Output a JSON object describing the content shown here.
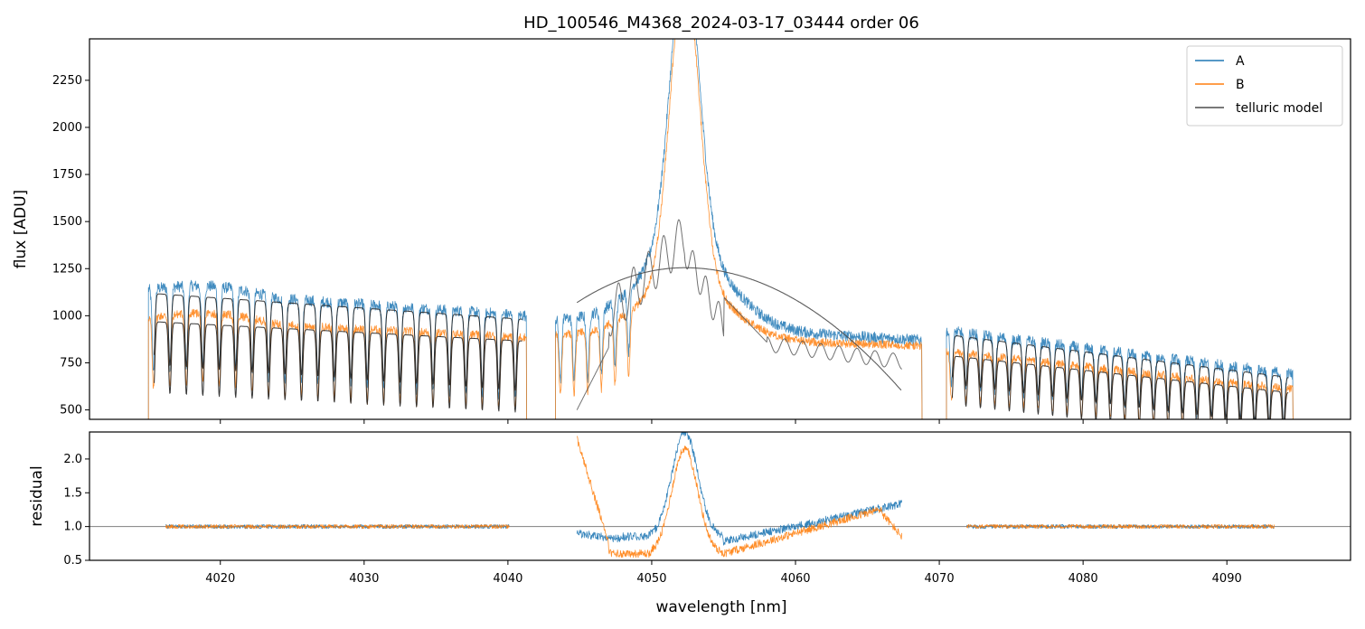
{
  "title": "HD_100546_M4368_2024-03-17_03444  order 06",
  "xlabel": "wavelength [nm]",
  "colors": {
    "A": "#1f77b4",
    "B": "#ff7f0e",
    "telluric": "#4d4d4d",
    "residual_ref": "#7f7f7f"
  },
  "legend": {
    "placement": "top-right",
    "entries": [
      "A",
      "B",
      "telluric model"
    ]
  },
  "chart_data": [
    {
      "name": "flux",
      "type": "line",
      "ylabel": "flux [ADU]",
      "xlim": [
        4010.9,
        4098.6
      ],
      "ylim": [
        450,
        2470
      ],
      "yticks": [
        500,
        750,
        1000,
        1250,
        1500,
        1750,
        2000,
        2250
      ],
      "xticks": [
        4020,
        4030,
        4040,
        4050,
        4060,
        4070,
        4080,
        4090
      ],
      "grid": false,
      "segments": [
        {
          "x_range": [
            4015.0,
            4041.3
          ],
          "A_level": [
            1140,
            1000
          ],
          "B_level": [
            990,
            885
          ]
        },
        {
          "x_range": [
            4043.3,
            4068.8
          ],
          "A_level": [
            980,
            870
          ],
          "B_level": [
            900,
            840
          ],
          "emission_peak_x": 4052.3
        },
        {
          "x_range": [
            4070.5,
            4094.6
          ],
          "A_level": [
            920,
            690
          ],
          "B_level": [
            810,
            610
          ]
        }
      ],
      "telluric_model_parabola": {
        "x_range": [
          4044.8,
          4067.4
        ],
        "peak_x": 4052.3,
        "peak_y": 1255
      },
      "series": [
        {
          "name": "A"
        },
        {
          "name": "B"
        },
        {
          "name": "telluric model"
        }
      ]
    },
    {
      "name": "residual",
      "type": "line",
      "ylabel": "residual",
      "xlim": [
        4010.9,
        4098.6
      ],
      "ylim": [
        0.5,
        2.4
      ],
      "yticks": [
        "0.5",
        "1.0",
        "1.5",
        "2.0"
      ],
      "xticks": [
        "4020",
        "4030",
        "4040",
        "4050",
        "4060",
        "4070",
        "4080",
        "4090"
      ],
      "reference_line": 1.0,
      "segments": [
        {
          "x_range": [
            4016.2,
            4040.1
          ],
          "level": 1.0
        },
        {
          "x_range": [
            4044.8,
            4067.4
          ],
          "peak_x": 4052.3
        },
        {
          "x_range": [
            4071.9,
            4093.3
          ],
          "level": 1.0
        }
      ]
    }
  ]
}
